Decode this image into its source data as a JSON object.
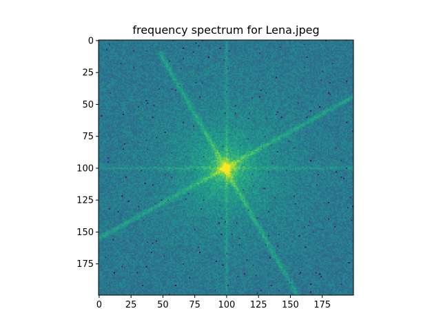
{
  "chart_data": {
    "type": "heatmap",
    "title": "frequency spectrum for Lena.jpeg",
    "xlabel": "",
    "ylabel": "",
    "colormap": "viridis",
    "image_size": [
      200,
      200
    ],
    "xlim": [
      0,
      199
    ],
    "ylim": [
      199,
      0
    ],
    "x_ticks": [
      0,
      25,
      50,
      75,
      100,
      125,
      150,
      175
    ],
    "y_ticks": [
      0,
      25,
      50,
      75,
      100,
      125,
      150,
      175
    ],
    "grid": false,
    "center": [
      100,
      100
    ],
    "streaks": [
      {
        "from": [
          48,
          10
        ],
        "to": [
          155,
          199
        ]
      },
      {
        "from": [
          0,
          155
        ],
        "to": [
          199,
          44
        ]
      },
      {
        "from": [
          0,
          100
        ],
        "to": [
          199,
          100
        ]
      },
      {
        "from": [
          100,
          0
        ],
        "to": [
          100,
          199
        ]
      }
    ]
  }
}
